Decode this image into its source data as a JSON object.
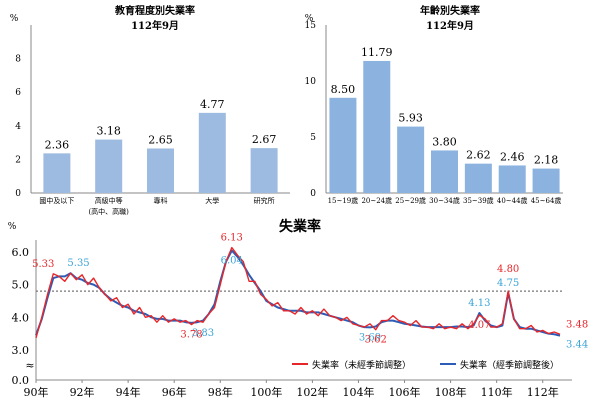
{
  "chart_data": [
    {
      "type": "bar",
      "title": "教育程度別失業率",
      "subtitle": "112年9月",
      "ylabel": "%",
      "ylim": [
        0,
        10
      ],
      "yticks": [
        0,
        2,
        4,
        6,
        8
      ],
      "categories": [
        "國中及以下",
        "高級中等",
        "專科",
        "大學",
        "研究所"
      ],
      "category_notes": [
        "",
        "(高中、高職)",
        "",
        "",
        ""
      ],
      "values": [
        2.36,
        3.18,
        2.65,
        4.77,
        2.67
      ],
      "value_labels": [
        "2.36",
        "3.18",
        "2.65",
        "4.77",
        "2.67"
      ],
      "bar_color": "#9dbbe0"
    },
    {
      "type": "bar",
      "title": "年齡別失業率",
      "subtitle": "112年9月",
      "ylabel": "%",
      "ylim": [
        0,
        15
      ],
      "yticks": [
        0,
        5,
        10,
        15
      ],
      "categories": [
        "15~19歲",
        "20~24歲",
        "25~29歲",
        "30~34歲",
        "35~39歲",
        "40~44歲",
        "45~64歲"
      ],
      "values": [
        8.5,
        11.79,
        5.93,
        3.8,
        2.62,
        2.46,
        2.18
      ],
      "value_labels": [
        "8.50",
        "11.79",
        "5.93",
        "3.80",
        "2.62",
        "2.46",
        "2.18"
      ],
      "bar_color": "#8cb3e0"
    },
    {
      "type": "line",
      "title": "失業率",
      "ylabel": "%",
      "ylim": [
        0,
        6.5
      ],
      "yticks": [
        "0.0",
        "3.0",
        "4.0",
        "5.0",
        "6.0"
      ],
      "xticks": [
        "90年",
        "92年",
        "94年",
        "96年",
        "98年",
        "100年",
        "102年",
        "104年",
        "106年",
        "108年",
        "110年",
        "112年"
      ],
      "xrange": [
        90,
        112.75
      ],
      "reference_line": 4.8,
      "series": [
        {
          "name": "失業率（未經季節調整）",
          "color": "#e8262a",
          "points": [
            [
              90.0,
              3.37
            ],
            [
              90.25,
              4.0
            ],
            [
              90.5,
              4.7
            ],
            [
              90.75,
              5.33
            ],
            [
              91.0,
              5.25
            ],
            [
              91.25,
              5.1
            ],
            [
              91.5,
              5.35
            ],
            [
              91.75,
              5.15
            ],
            [
              92.0,
              5.3
            ],
            [
              92.25,
              5.0
            ],
            [
              92.5,
              5.2
            ],
            [
              92.75,
              4.9
            ],
            [
              93.0,
              4.7
            ],
            [
              93.25,
              4.5
            ],
            [
              93.5,
              4.6
            ],
            [
              93.75,
              4.3
            ],
            [
              94.0,
              4.4
            ],
            [
              94.25,
              4.1
            ],
            [
              94.5,
              4.3
            ],
            [
              94.75,
              4.0
            ],
            [
              95.0,
              4.05
            ],
            [
              95.25,
              3.85
            ],
            [
              95.5,
              4.05
            ],
            [
              95.75,
              3.85
            ],
            [
              96.0,
              3.95
            ],
            [
              96.25,
              3.85
            ],
            [
              96.5,
              3.9
            ],
            [
              96.75,
              3.78
            ],
            [
              97.0,
              3.9
            ],
            [
              97.25,
              3.85
            ],
            [
              97.5,
              4.1
            ],
            [
              97.75,
              4.3
            ],
            [
              98.0,
              5.0
            ],
            [
              98.25,
              5.7
            ],
            [
              98.5,
              6.13
            ],
            [
              98.75,
              5.9
            ],
            [
              99.0,
              5.7
            ],
            [
              99.25,
              5.1
            ],
            [
              99.5,
              5.1
            ],
            [
              99.75,
              4.7
            ],
            [
              100.0,
              4.55
            ],
            [
              100.25,
              4.35
            ],
            [
              100.5,
              4.45
            ],
            [
              100.75,
              4.2
            ],
            [
              101.0,
              4.2
            ],
            [
              101.25,
              4.1
            ],
            [
              101.5,
              4.3
            ],
            [
              101.75,
              4.1
            ],
            [
              102.0,
              4.2
            ],
            [
              102.25,
              4.05
            ],
            [
              102.5,
              4.25
            ],
            [
              102.75,
              4.05
            ],
            [
              103.0,
              4.0
            ],
            [
              103.25,
              3.9
            ],
            [
              103.5,
              4.0
            ],
            [
              103.75,
              3.8
            ],
            [
              104.0,
              3.75
            ],
            [
              104.25,
              3.7
            ],
            [
              104.5,
              3.8
            ],
            [
              104.75,
              3.62
            ],
            [
              105.0,
              3.9
            ],
            [
              105.25,
              3.9
            ],
            [
              105.5,
              4.05
            ],
            [
              105.75,
              3.9
            ],
            [
              106.0,
              3.85
            ],
            [
              106.25,
              3.75
            ],
            [
              106.5,
              3.9
            ],
            [
              106.75,
              3.7
            ],
            [
              107.0,
              3.7
            ],
            [
              107.25,
              3.65
            ],
            [
              107.5,
              3.8
            ],
            [
              107.75,
              3.65
            ],
            [
              108.0,
              3.7
            ],
            [
              108.25,
              3.65
            ],
            [
              108.5,
              3.8
            ],
            [
              108.75,
              3.65
            ],
            [
              109.0,
              3.8
            ],
            [
              109.25,
              4.07
            ],
            [
              109.5,
              3.95
            ],
            [
              109.75,
              3.7
            ],
            [
              110.0,
              3.7
            ],
            [
              110.25,
              3.8
            ],
            [
              110.5,
              4.8
            ],
            [
              110.75,
              3.95
            ],
            [
              111.0,
              3.65
            ],
            [
              111.25,
              3.65
            ],
            [
              111.5,
              3.75
            ],
            [
              111.75,
              3.55
            ],
            [
              112.0,
              3.6
            ],
            [
              112.25,
              3.5
            ],
            [
              112.5,
              3.55
            ],
            [
              112.75,
              3.48
            ]
          ]
        },
        {
          "name": "失業率（經季節調整後）",
          "color": "#2c5db6",
          "points": [
            [
              90.0,
              3.45
            ],
            [
              90.25,
              3.95
            ],
            [
              90.5,
              4.6
            ],
            [
              90.75,
              5.2
            ],
            [
              91.0,
              5.25
            ],
            [
              91.25,
              5.25
            ],
            [
              91.5,
              5.35
            ],
            [
              91.75,
              5.2
            ],
            [
              92.0,
              5.15
            ],
            [
              92.25,
              5.05
            ],
            [
              92.5,
              5.0
            ],
            [
              92.75,
              4.9
            ],
            [
              93.0,
              4.7
            ],
            [
              93.25,
              4.55
            ],
            [
              93.5,
              4.45
            ],
            [
              93.75,
              4.35
            ],
            [
              94.0,
              4.3
            ],
            [
              94.25,
              4.2
            ],
            [
              94.5,
              4.15
            ],
            [
              94.75,
              4.1
            ],
            [
              95.0,
              4.0
            ],
            [
              95.25,
              3.95
            ],
            [
              95.5,
              3.95
            ],
            [
              95.75,
              3.9
            ],
            [
              96.0,
              3.9
            ],
            [
              96.25,
              3.9
            ],
            [
              96.5,
              3.85
            ],
            [
              96.75,
              3.83
            ],
            [
              97.0,
              3.85
            ],
            [
              97.25,
              3.9
            ],
            [
              97.5,
              4.1
            ],
            [
              97.75,
              4.4
            ],
            [
              98.0,
              5.1
            ],
            [
              98.25,
              5.7
            ],
            [
              98.5,
              6.04
            ],
            [
              98.75,
              5.85
            ],
            [
              99.0,
              5.6
            ],
            [
              99.25,
              5.3
            ],
            [
              99.5,
              5.05
            ],
            [
              99.75,
              4.8
            ],
            [
              100.0,
              4.5
            ],
            [
              100.25,
              4.4
            ],
            [
              100.5,
              4.3
            ],
            [
              100.75,
              4.25
            ],
            [
              101.0,
              4.2
            ],
            [
              101.25,
              4.2
            ],
            [
              101.5,
              4.2
            ],
            [
              101.75,
              4.15
            ],
            [
              102.0,
              4.15
            ],
            [
              102.25,
              4.15
            ],
            [
              102.5,
              4.1
            ],
            [
              102.75,
              4.05
            ],
            [
              103.0,
              4.0
            ],
            [
              103.25,
              3.95
            ],
            [
              103.5,
              3.9
            ],
            [
              103.75,
              3.85
            ],
            [
              104.0,
              3.75
            ],
            [
              104.25,
              3.7
            ],
            [
              104.5,
              3.69
            ],
            [
              104.75,
              3.72
            ],
            [
              105.0,
              3.85
            ],
            [
              105.25,
              3.9
            ],
            [
              105.5,
              3.9
            ],
            [
              105.75,
              3.85
            ],
            [
              106.0,
              3.8
            ],
            [
              106.25,
              3.78
            ],
            [
              106.5,
              3.75
            ],
            [
              106.75,
              3.72
            ],
            [
              107.0,
              3.7
            ],
            [
              107.25,
              3.7
            ],
            [
              107.5,
              3.7
            ],
            [
              107.75,
              3.7
            ],
            [
              108.0,
              3.7
            ],
            [
              108.25,
              3.72
            ],
            [
              108.5,
              3.72
            ],
            [
              108.75,
              3.7
            ],
            [
              109.0,
              3.75
            ],
            [
              109.25,
              4.13
            ],
            [
              109.5,
              3.9
            ],
            [
              109.75,
              3.75
            ],
            [
              110.0,
              3.7
            ],
            [
              110.25,
              3.75
            ],
            [
              110.5,
              4.75
            ],
            [
              110.75,
              3.95
            ],
            [
              111.0,
              3.7
            ],
            [
              111.25,
              3.65
            ],
            [
              111.5,
              3.65
            ],
            [
              111.75,
              3.6
            ],
            [
              112.0,
              3.55
            ],
            [
              112.25,
              3.5
            ],
            [
              112.5,
              3.48
            ],
            [
              112.75,
              3.44
            ]
          ]
        }
      ],
      "annotations": [
        {
          "text": "5.33",
          "x": 90.75,
          "y": 5.33,
          "color": "#e8262a",
          "pos": "above"
        },
        {
          "text": "5.35",
          "x": 91.5,
          "y": 5.35,
          "color": "#3ba3d8",
          "pos": "above"
        },
        {
          "text": "6.13",
          "x": 98.5,
          "y": 6.13,
          "color": "#e8262a",
          "pos": "above"
        },
        {
          "text": "6.04",
          "x": 98.5,
          "y": 6.04,
          "color": "#3ba3d8",
          "pos": "below"
        },
        {
          "text": "3.78",
          "x": 96.75,
          "y": 3.78,
          "color": "#e8262a",
          "pos": "below"
        },
        {
          "text": "3.83",
          "x": 97.25,
          "y": 3.83,
          "color": "#3ba3d8",
          "pos": "below"
        },
        {
          "text": "3.69",
          "x": 104.5,
          "y": 3.69,
          "color": "#3ba3d8",
          "pos": "below"
        },
        {
          "text": "3.62",
          "x": 104.75,
          "y": 3.62,
          "color": "#e8262a",
          "pos": "below"
        },
        {
          "text": "4.13",
          "x": 109.25,
          "y": 4.13,
          "color": "#3ba3d8",
          "pos": "above"
        },
        {
          "text": "4.07",
          "x": 109.25,
          "y": 4.07,
          "color": "#e8262a",
          "pos": "below"
        },
        {
          "text": "4.80",
          "x": 110.5,
          "y": 4.8,
          "color": "#e8262a",
          "pos": "above"
        },
        {
          "text": "4.75",
          "x": 110.5,
          "y": 4.75,
          "color": "#3ba3d8",
          "pos": "above"
        },
        {
          "text": "3.48",
          "x": 112.75,
          "y": 3.48,
          "color": "#e8262a",
          "pos": "right"
        },
        {
          "text": "3.44",
          "x": 112.75,
          "y": 3.44,
          "color": "#3ba3d8",
          "pos": "right"
        }
      ],
      "legend": "bottom-right"
    }
  ]
}
